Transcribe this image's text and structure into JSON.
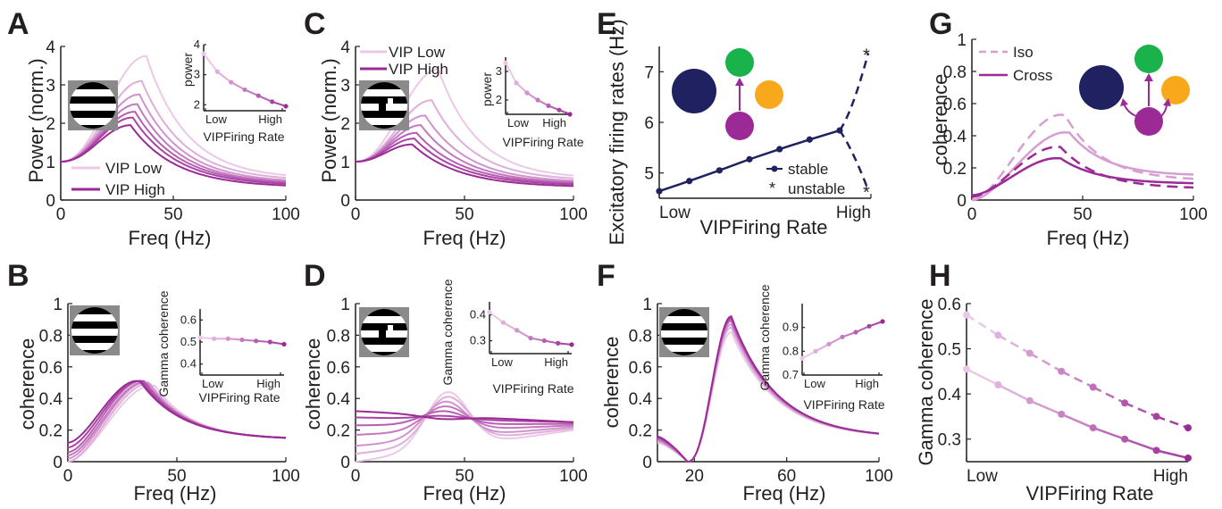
{
  "colors": {
    "low": "#ecc8e8",
    "high": "#9b2a96",
    "mid": "#c97cc4",
    "navy": "#1f2160",
    "green": "#19b24b",
    "orange": "#f8a81b",
    "purple": "#9b2a96",
    "axis": "#231f20"
  },
  "icons": {
    "stimulus_full": "grating-icon",
    "stimulus_patch": "grating-patch-icon",
    "network_E": "network-diagram-icon",
    "network_G": "network-diagram-icon"
  },
  "chart_data": [
    {
      "panel": "A",
      "type": "line",
      "xlabel": "Freq (Hz)",
      "ylabel": "Power (norm.)",
      "xlim": [
        0,
        100
      ],
      "ylim": [
        0,
        4
      ],
      "xticks": [
        "0",
        "50",
        "100"
      ],
      "yticks": [
        "0",
        "1",
        "2",
        "3",
        "4"
      ],
      "legend": [
        "VIP Low",
        "VIP High"
      ],
      "series": [
        {
          "peak_x": 38,
          "peak_y": 3.75,
          "end_y": 0.55
        },
        {
          "peak_x": 36,
          "peak_y": 3.1,
          "end_y": 0.5
        },
        {
          "peak_x": 35,
          "peak_y": 2.75,
          "end_y": 0.45
        },
        {
          "peak_x": 34,
          "peak_y": 2.5,
          "end_y": 0.42
        },
        {
          "peak_x": 33,
          "peak_y": 2.3,
          "end_y": 0.4
        },
        {
          "peak_x": 32,
          "peak_y": 2.15,
          "end_y": 0.37
        },
        {
          "peak_x": 31,
          "peak_y": 1.95,
          "end_y": 0.33
        }
      ],
      "inset": {
        "ylabel": "power",
        "ylim": [
          2,
          4
        ],
        "yticks": [
          "2",
          "3",
          "4"
        ],
        "xticks": [
          "Low",
          "High"
        ],
        "xlabel": "VIPFiring  Rate",
        "values": [
          3.7,
          3.1,
          2.75,
          2.5,
          2.3,
          2.1,
          1.95
        ]
      }
    },
    {
      "panel": "B",
      "type": "line",
      "xlabel": "Freq (Hz)",
      "ylabel": "coherence",
      "xlim": [
        0,
        100
      ],
      "ylim": [
        0,
        1
      ],
      "xticks": [
        "0",
        "50",
        "100"
      ],
      "yticks": [
        "0",
        "0.2",
        "0.4",
        "0.6",
        "0.8",
        "1"
      ],
      "series": [
        {
          "start_y": 0.0,
          "peak_x": 40,
          "peak_y": 0.48,
          "end_y": 0.14
        },
        {
          "start_y": 0.0,
          "peak_x": 38,
          "peak_y": 0.49,
          "end_y": 0.14
        },
        {
          "start_y": 0.02,
          "peak_x": 37,
          "peak_y": 0.5,
          "end_y": 0.14
        },
        {
          "start_y": 0.04,
          "peak_x": 36,
          "peak_y": 0.5,
          "end_y": 0.14
        },
        {
          "start_y": 0.06,
          "peak_x": 35,
          "peak_y": 0.51,
          "end_y": 0.14
        },
        {
          "start_y": 0.09,
          "peak_x": 34,
          "peak_y": 0.51,
          "end_y": 0.14
        },
        {
          "start_y": 0.12,
          "peak_x": 33,
          "peak_y": 0.51,
          "end_y": 0.14
        }
      ],
      "inset": {
        "ylabel": "Gamma coherence",
        "ylim": [
          0.35,
          0.65
        ],
        "yticks": [
          "0.4",
          "0.5",
          "0.6"
        ],
        "xticks": [
          "Low",
          "High"
        ],
        "xlabel": "VIPFiring  Rate",
        "values": [
          0.52,
          0.515,
          0.515,
          0.51,
          0.505,
          0.5,
          0.49
        ]
      }
    },
    {
      "panel": "C",
      "type": "line",
      "xlabel": "Freq (Hz)",
      "ylabel": "Power (norm.)",
      "xlim": [
        0,
        100
      ],
      "ylim": [
        0,
        4
      ],
      "xticks": [
        "0",
        "50",
        "100"
      ],
      "yticks": [
        "0",
        "1",
        "2",
        "3",
        "4"
      ],
      "legend": [
        "VIP Low",
        "VIP High"
      ],
      "series": [
        {
          "peak_x": 38,
          "peak_y": 3.4,
          "end_y": 0.55
        },
        {
          "peak_x": 35,
          "peak_y": 2.6,
          "end_y": 0.5
        },
        {
          "peak_x": 32,
          "peak_y": 2.2,
          "end_y": 0.45
        },
        {
          "peak_x": 30,
          "peak_y": 1.95,
          "end_y": 0.42
        },
        {
          "peak_x": 28,
          "peak_y": 1.75,
          "end_y": 0.4
        },
        {
          "peak_x": 27,
          "peak_y": 1.6,
          "end_y": 0.37
        },
        {
          "peak_x": 26,
          "peak_y": 1.45,
          "end_y": 0.33
        }
      ],
      "inset": {
        "ylabel": "power",
        "ylim": [
          1.5,
          3.5
        ],
        "yticks": [
          "2",
          "3"
        ],
        "xticks": [
          "Low",
          "High"
        ],
        "xlabel": "VIPFiring  Rate",
        "values": [
          3.3,
          2.6,
          2.25,
          2.0,
          1.8,
          1.65,
          1.5
        ]
      }
    },
    {
      "panel": "D",
      "type": "line",
      "xlabel": "Freq (Hz)",
      "ylabel": "coherence",
      "xlim": [
        0,
        100
      ],
      "ylim": [
        0,
        1
      ],
      "xticks": [
        "0",
        "50",
        "100"
      ],
      "yticks": [
        "0",
        "0.2",
        "0.4",
        "0.6",
        "0.8",
        "1"
      ],
      "series": [
        {
          "start_y": 0.0,
          "bump_x": 42,
          "bump_y": 0.44,
          "end_y": 0.2
        },
        {
          "start_y": 0.05,
          "bump_x": 42,
          "bump_y": 0.41,
          "end_y": 0.21
        },
        {
          "start_y": 0.1,
          "bump_x": 41,
          "bump_y": 0.38,
          "end_y": 0.22
        },
        {
          "start_y": 0.17,
          "bump_x": 41,
          "bump_y": 0.35,
          "end_y": 0.23
        },
        {
          "start_y": 0.23,
          "bump_x": 40,
          "bump_y": 0.32,
          "end_y": 0.24
        },
        {
          "start_y": 0.28,
          "bump_x": 40,
          "bump_y": 0.29,
          "end_y": 0.25
        },
        {
          "start_y": 0.32,
          "bump_x": 40,
          "bump_y": 0.27,
          "end_y": 0.25
        }
      ],
      "inset": {
        "ylabel": "Gamma coherence",
        "ylim": [
          0.25,
          0.45
        ],
        "yticks": [
          "0.3",
          "0.4"
        ],
        "xticks": [
          "Low",
          "High"
        ],
        "xlabel": "VIPFiring  Rate",
        "values": [
          0.41,
          0.37,
          0.34,
          0.31,
          0.3,
          0.29,
          0.285
        ]
      }
    },
    {
      "panel": "E",
      "type": "line",
      "xlabel": "VIPFiring  Rate",
      "ylabel": "Excitatory firing rates (Hz)",
      "ylim": [
        4.5,
        7.5
      ],
      "yticks": [
        "5",
        "6",
        "7"
      ],
      "xticks": [
        "Low",
        "High"
      ],
      "legend": [
        "stable",
        "unstable"
      ],
      "stable": [
        4.64,
        4.84,
        5.05,
        5.27,
        5.47,
        5.66,
        5.84
      ],
      "unstable": {
        "branch_start": 5.84,
        "upper": 7.37,
        "lower": 4.66
      }
    },
    {
      "panel": "F",
      "type": "line",
      "xlabel": "Freq (Hz)",
      "ylabel": "coherence",
      "xlim": [
        0,
        100
      ],
      "ylim": [
        0,
        1
      ],
      "xticks": [
        "20",
        "60",
        "100"
      ],
      "yticks": [
        "0",
        "0.2",
        "0.4",
        "0.6",
        "0.8",
        "1"
      ],
      "series_peaks": [
        0.82,
        0.85,
        0.87,
        0.89,
        0.9,
        0.91,
        0.92
      ],
      "inset": {
        "ylabel": "Gamma coherence",
        "ylim": [
          0.7,
          1.0
        ],
        "yticks": [
          "0.7",
          "0.8",
          "0.9"
        ],
        "xticks": [
          "Low",
          "High"
        ],
        "xlabel": "VIPFiring  Rate",
        "values": [
          0.77,
          0.8,
          0.83,
          0.86,
          0.88,
          0.905,
          0.925
        ]
      }
    },
    {
      "panel": "G",
      "type": "line",
      "xlabel": "Freq (Hz)",
      "ylabel": "coherence",
      "xlim": [
        0,
        100
      ],
      "ylim": [
        0,
        1
      ],
      "xticks": [
        "0",
        "50",
        "100"
      ],
      "yticks": [
        "0",
        "0.2",
        "0.4",
        "0.6",
        "0.8",
        "1"
      ],
      "legend": [
        "Iso",
        "Cross"
      ],
      "series": [
        {
          "name": "Iso",
          "dashed": true,
          "color": "low",
          "start_y": 0.0,
          "peak_x": 42,
          "peak_y": 0.53,
          "end_y": 0.12
        },
        {
          "name": "Cross",
          "dashed": false,
          "color": "low",
          "start_y": 0.0,
          "peak_x": 44,
          "peak_y": 0.42,
          "end_y": 0.15
        },
        {
          "name": "Iso",
          "dashed": true,
          "color": "high",
          "start_y": 0.02,
          "peak_x": 40,
          "peak_y": 0.33,
          "end_y": 0.07
        },
        {
          "name": "Cross",
          "dashed": false,
          "color": "high",
          "start_y": 0.03,
          "peak_x": 40,
          "peak_y": 0.26,
          "end_y": 0.1
        }
      ]
    },
    {
      "panel": "H",
      "type": "line",
      "xlabel": "VIPFiring  Rate",
      "ylabel": "Gamma coherence",
      "ylim": [
        0.25,
        0.6
      ],
      "yticks": [
        "0.3",
        "0.4",
        "0.5",
        "0.6"
      ],
      "xticks": [
        "Low",
        "High"
      ],
      "iso": [
        0.575,
        0.53,
        0.49,
        0.45,
        0.415,
        0.38,
        0.35,
        0.325
      ],
      "cross": [
        0.455,
        0.42,
        0.385,
        0.355,
        0.325,
        0.3,
        0.275,
        0.258
      ]
    }
  ]
}
